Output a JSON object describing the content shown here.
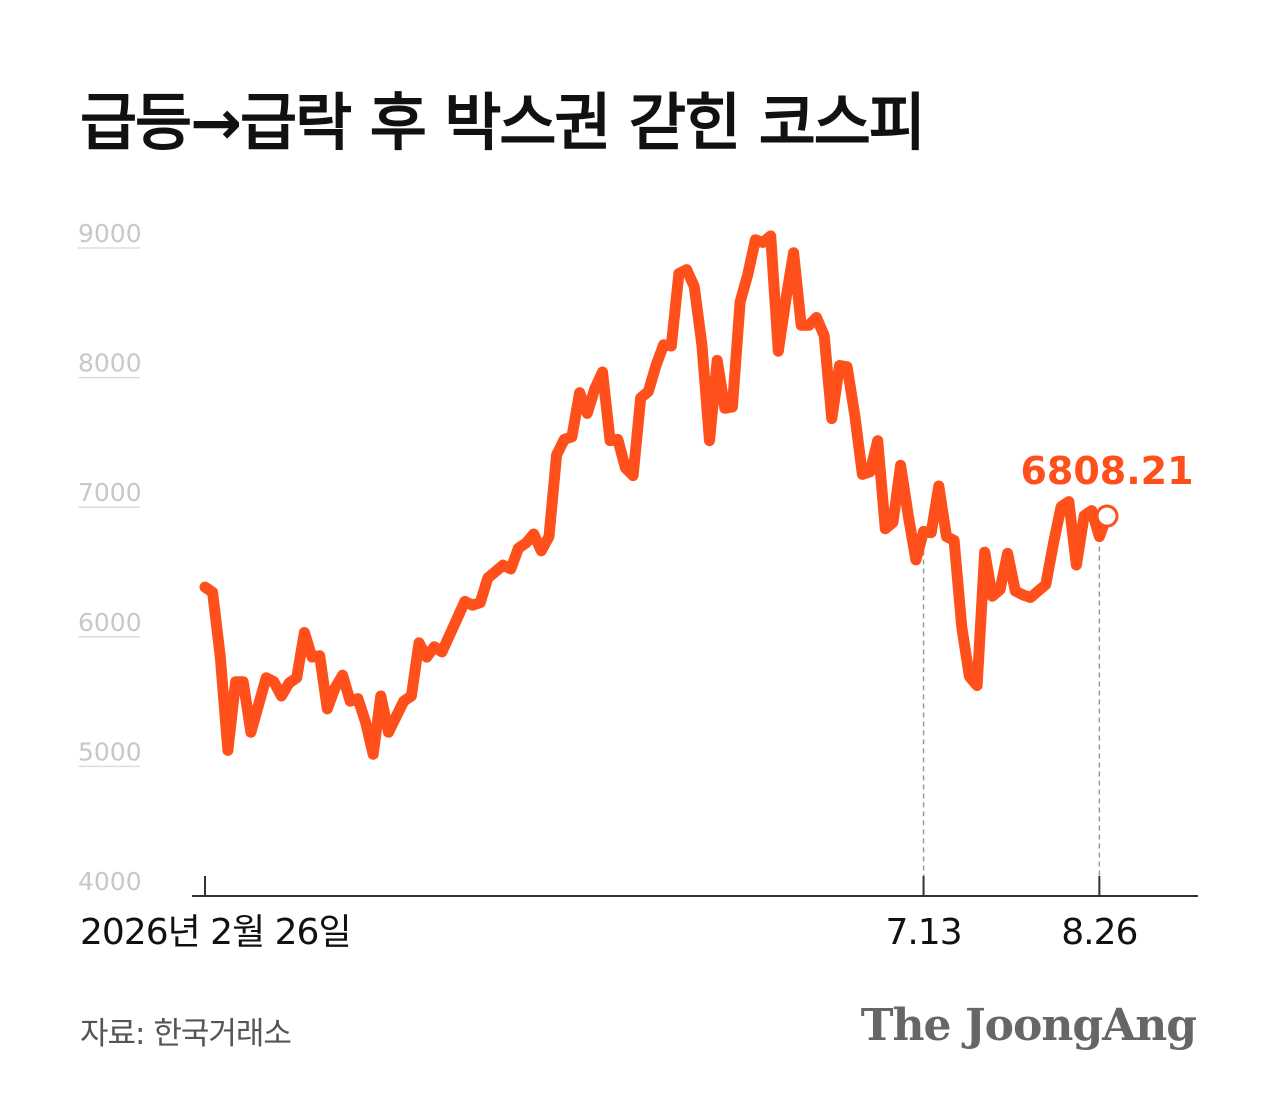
{
  "title": "급등→급락 후 박스권 갇힌 코스피",
  "source": "자료: 한국거래소",
  "brand": "The JoongAng",
  "colors": {
    "line": "#ff4f1a",
    "grid": "#dddddd",
    "tick_text": "#c8c8c8",
    "axis": "#333333",
    "guide": "#999999"
  },
  "chart_data": {
    "type": "line",
    "title": "급등→급락 후 박스권 갇힌 코스피",
    "ylim": [
      4000,
      9000
    ],
    "yticks": [
      9000,
      8000,
      7000,
      6000,
      5000,
      4000
    ],
    "xlabels": [
      {
        "label": "2026년 2월 26일",
        "index": 0
      },
      {
        "label": "7.13",
        "index": 94
      },
      {
        "label": "8.26",
        "index": 117
      }
    ],
    "grid": true,
    "last_value": 6808.21,
    "last_value_label": "6808.21",
    "values": [
      6260,
      6220,
      5720,
      5000,
      5530,
      5530,
      5140,
      5350,
      5560,
      5530,
      5420,
      5520,
      5560,
      5910,
      5720,
      5730,
      5320,
      5480,
      5580,
      5380,
      5400,
      5220,
      4970,
      5420,
      5140,
      5260,
      5380,
      5420,
      5830,
      5720,
      5800,
      5760,
      5890,
      6020,
      6150,
      6120,
      6140,
      6330,
      6380,
      6430,
      6400,
      6560,
      6600,
      6670,
      6540,
      6650,
      7280,
      7400,
      7420,
      7760,
      7600,
      7790,
      7920,
      7390,
      7400,
      7180,
      7120,
      7720,
      7770,
      7970,
      8130,
      8120,
      8680,
      8710,
      8580,
      8130,
      7390,
      8010,
      7640,
      7650,
      8460,
      8670,
      8940,
      8920,
      8970,
      8080,
      8480,
      8840,
      8280,
      8280,
      8340,
      8200,
      7560,
      7970,
      7960,
      7590,
      7130,
      7150,
      7390,
      6710,
      6760,
      7200,
      6810,
      6470,
      6690,
      6680,
      7040,
      6650,
      6620,
      5950,
      5570,
      5500,
      6530,
      6190,
      6240,
      6520,
      6230,
      6200,
      6180,
      6230,
      6280,
      6600,
      6880,
      6920,
      6430,
      6810,
      6850,
      6650,
      6808.21
    ]
  }
}
